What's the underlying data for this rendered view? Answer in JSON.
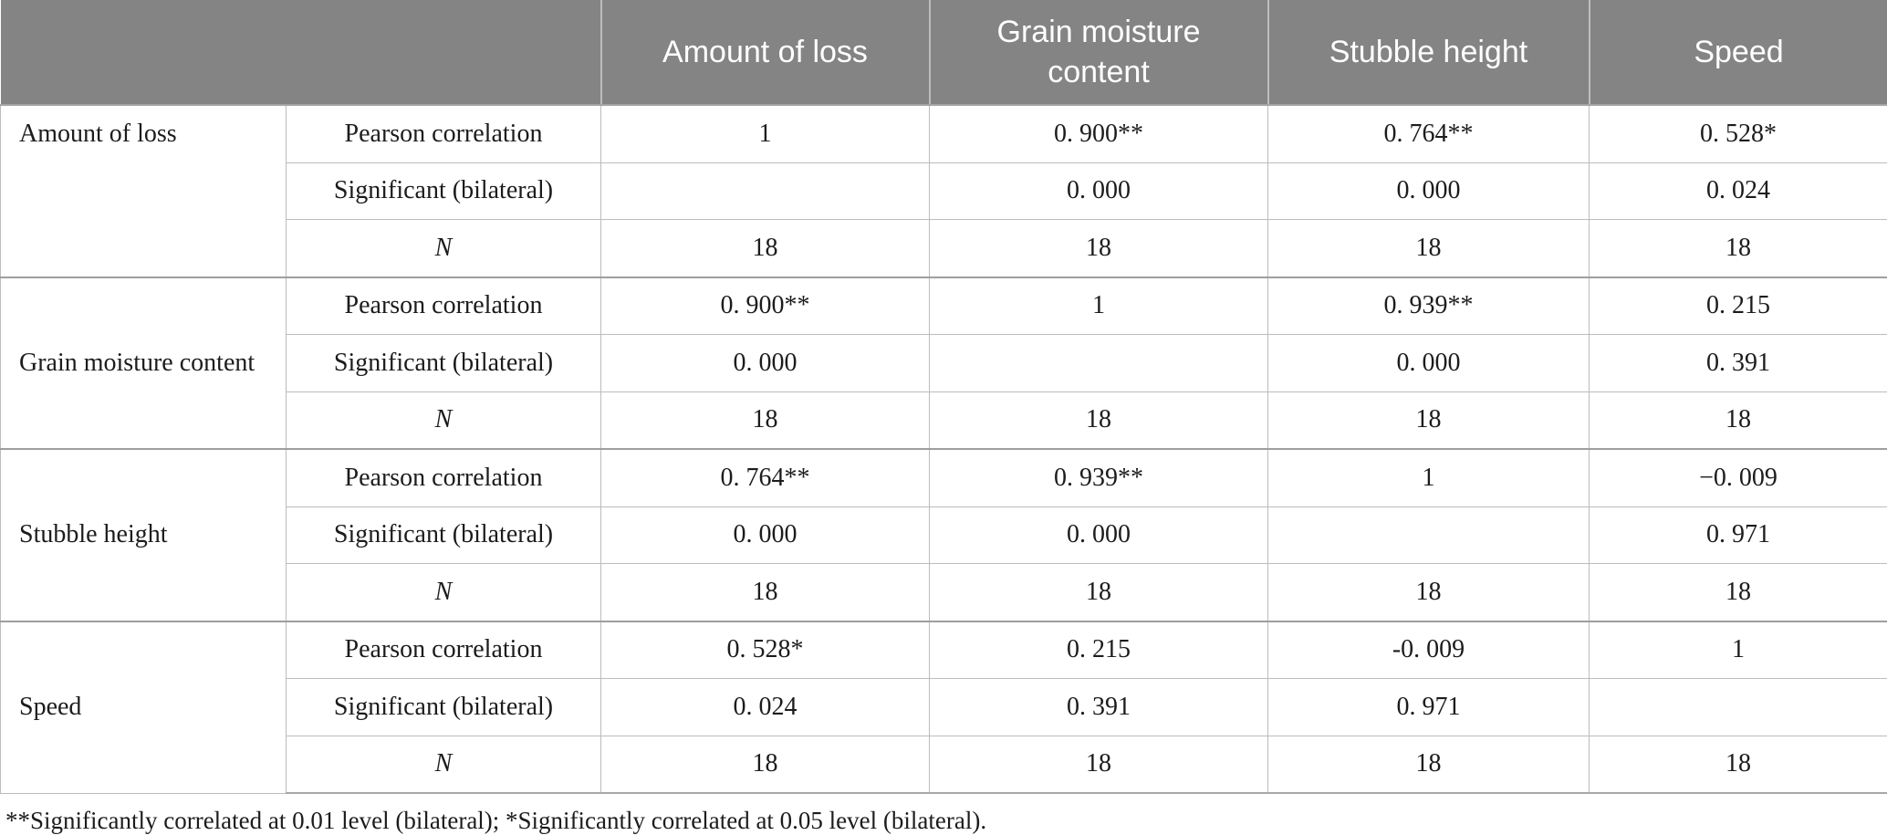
{
  "table": {
    "col_headers": [
      "Amount of loss",
      "Grain moisture content",
      "Stubble height",
      "Speed"
    ],
    "groups": [
      {
        "label": "Amount of loss",
        "rows": [
          {
            "stat": "Pearson correlation",
            "values": [
              "1",
              "0. 900**",
              "0. 764**",
              "0. 528*"
            ]
          },
          {
            "stat": "Significant (bilateral)",
            "values": [
              "",
              "0. 000",
              "0. 000",
              "0. 024"
            ]
          },
          {
            "stat": "N",
            "values": [
              "18",
              "18",
              "18",
              "18"
            ]
          }
        ]
      },
      {
        "label": "Grain moisture content",
        "rows": [
          {
            "stat": "Pearson correlation",
            "values": [
              "0. 900**",
              "1",
              "0. 939**",
              "0. 215"
            ]
          },
          {
            "stat": "Significant (bilateral)",
            "values": [
              "0. 000",
              "",
              "0. 000",
              "0. 391"
            ]
          },
          {
            "stat": "N",
            "values": [
              "18",
              "18",
              "18",
              "18"
            ]
          }
        ]
      },
      {
        "label": "Stubble height",
        "rows": [
          {
            "stat": "Pearson correlation",
            "values": [
              "0. 764**",
              "0. 939**",
              "1",
              "−0. 009"
            ]
          },
          {
            "stat": "Significant (bilateral)",
            "values": [
              "0. 000",
              "0. 000",
              "",
              "0. 971"
            ]
          },
          {
            "stat": "N",
            "values": [
              "18",
              "18",
              "18",
              "18"
            ]
          }
        ]
      },
      {
        "label": "Speed",
        "rows": [
          {
            "stat": "Pearson correlation",
            "values": [
              "0. 528*",
              "0. 215",
              "-0. 009",
              "1"
            ]
          },
          {
            "stat": "Significant (bilateral)",
            "values": [
              "0. 024",
              "0. 391",
              "0. 971",
              ""
            ]
          },
          {
            "stat": "N",
            "values": [
              "18",
              "18",
              "18",
              "18"
            ]
          }
        ]
      }
    ],
    "footnote": "**Significantly correlated at 0.01 level (bilateral); *Significantly correlated at 0.05 level (bilateral)."
  },
  "colors": {
    "header_bg": "#848484",
    "header_text": "#ffffff",
    "cell_border": "#bcbcbc",
    "group_border": "#9e9e9e",
    "body_text": "#1c1c1c"
  }
}
